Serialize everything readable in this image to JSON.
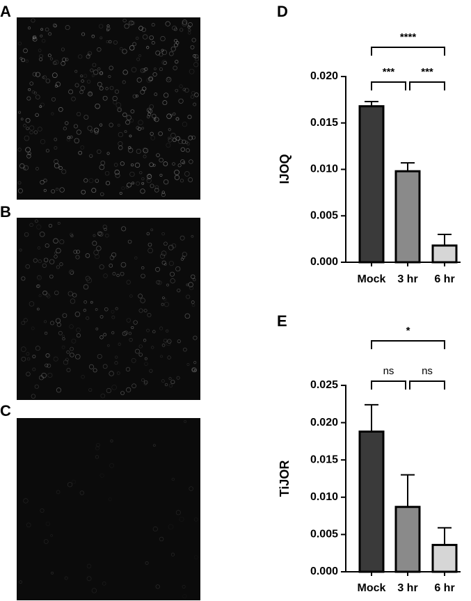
{
  "panels": [
    {
      "label": "A"
    },
    {
      "label": "B"
    },
    {
      "label": "C"
    }
  ],
  "chart_data": [
    {
      "type": "bar",
      "panel_label": "D",
      "y_label": "IJOQ",
      "categories": [
        "Mock",
        "3 hr",
        "6 hr"
      ],
      "values": [
        0.0168,
        0.0098,
        0.0018
      ],
      "errors": [
        0.0005,
        0.0009,
        0.0012
      ],
      "colors": [
        "#3a3a3a",
        "#8a8a8a",
        "#d6d6d6"
      ],
      "ylim": [
        0,
        0.02
      ],
      "yticks": [
        {
          "value": 0,
          "label": "0.000"
        },
        {
          "value": 0.005,
          "label": "0.005"
        },
        {
          "value": 0.01,
          "label": "0.010"
        },
        {
          "value": 0.015,
          "label": "0.015"
        },
        {
          "value": 0.02,
          "label": "0.020"
        }
      ],
      "comparisons": [
        {
          "label": "***"
        },
        {
          "label": "***"
        },
        {
          "label": "****"
        }
      ]
    },
    {
      "type": "bar",
      "panel_label": "E",
      "y_label": "TiJOR",
      "categories": [
        "Mock",
        "3 hr",
        "6 hr"
      ],
      "values": [
        0.0188,
        0.0087,
        0.0036
      ],
      "errors": [
        0.0036,
        0.0043,
        0.0023
      ],
      "colors": [
        "#3a3a3a",
        "#8a8a8a",
        "#d6d6d6"
      ],
      "ylim": [
        0,
        0.025
      ],
      "yticks": [
        {
          "value": 0,
          "label": "0.000"
        },
        {
          "value": 0.005,
          "label": "0.005"
        },
        {
          "value": 0.01,
          "label": "0.010"
        },
        {
          "value": 0.015,
          "label": "0.015"
        },
        {
          "value": 0.02,
          "label": "0.020"
        },
        {
          "value": 0.025,
          "label": "0.025"
        }
      ],
      "comparisons": [
        {
          "label": "ns"
        },
        {
          "label": "ns"
        },
        {
          "label": "*"
        }
      ]
    }
  ]
}
